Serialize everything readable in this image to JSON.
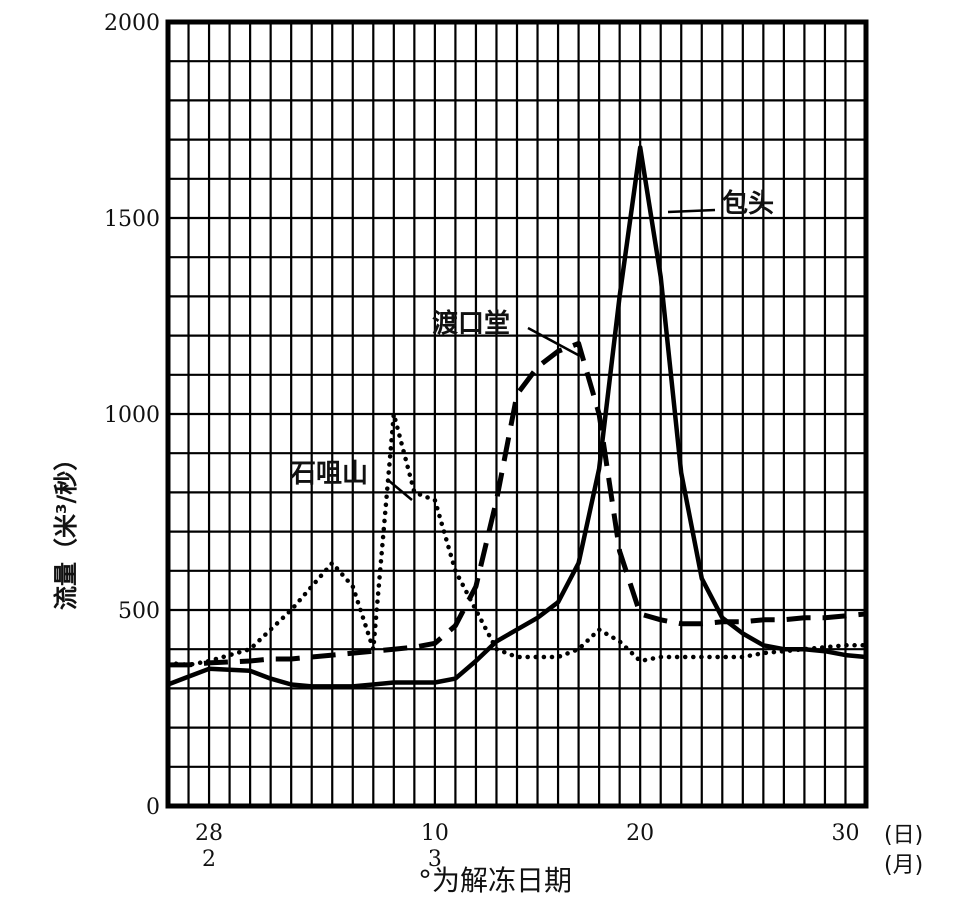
{
  "chart_data": {
    "type": "line",
    "ylabel": "流量（米³/秒）",
    "xlabel": "°为解冻日期",
    "day_unit": "(日)",
    "month_unit": "(月)",
    "ylim": [
      0,
      2000
    ],
    "yticks": [
      0,
      500,
      1000,
      1500,
      2000
    ],
    "xlim": [
      "02-26",
      "03-31"
    ],
    "xticks": [
      {
        "date": "02-28",
        "day": "28",
        "month": "2"
      },
      {
        "date": "03-10",
        "day": "10",
        "month": "3"
      },
      {
        "date": "03-20",
        "day": "20",
        "month": ""
      },
      {
        "date": "03-30",
        "day": "30",
        "month": ""
      }
    ],
    "grid": true,
    "series": [
      {
        "name": "包头",
        "style": "solid",
        "x": [
          "02-26",
          "02-27",
          "02-28",
          "03-01",
          "03-02",
          "03-03",
          "03-04",
          "03-05",
          "03-06",
          "03-07",
          "03-08",
          "03-09",
          "03-10",
          "03-11",
          "03-12",
          "03-13",
          "03-14",
          "03-15",
          "03-16",
          "03-17",
          "03-18",
          "03-19",
          "03-20",
          "03-21",
          "03-22",
          "03-23",
          "03-24",
          "03-25",
          "03-26",
          "03-27",
          "03-28",
          "03-29",
          "03-30",
          "03-31"
        ],
        "y": [
          310,
          330,
          350,
          345,
          325,
          310,
          305,
          305,
          305,
          310,
          315,
          315,
          315,
          325,
          370,
          420,
          450,
          480,
          520,
          620,
          860,
          1300,
          1680,
          1350,
          850,
          580,
          480,
          440,
          410,
          400,
          400,
          395,
          385,
          380
        ]
      },
      {
        "name": "渡口堂",
        "style": "dashed",
        "x": [
          "02-26",
          "02-27",
          "02-28",
          "03-01",
          "03-02",
          "03-03",
          "03-04",
          "03-05",
          "03-06",
          "03-07",
          "03-08",
          "03-09",
          "03-10",
          "03-11",
          "03-12",
          "03-13",
          "03-14",
          "03-15",
          "03-16",
          "03-17",
          "03-18",
          "03-19",
          "03-20",
          "03-21",
          "03-22",
          "03-23",
          "03-24",
          "03-25",
          "03-26",
          "03-27",
          "03-28",
          "03-29",
          "03-30",
          "03-31"
        ],
        "y": [
          360,
          360,
          365,
          370,
          375,
          375,
          380,
          385,
          390,
          395,
          400,
          405,
          415,
          460,
          560,
          780,
          1050,
          1120,
          1160,
          1180,
          1000,
          650,
          490,
          475,
          465,
          465,
          470,
          470,
          475,
          475,
          480,
          480,
          485,
          490
        ]
      },
      {
        "name": "石咀山",
        "style": "dotted",
        "x": [
          "02-26",
          "02-27",
          "02-28",
          "03-01",
          "03-02",
          "03-03",
          "03-04",
          "03-05",
          "03-06",
          "03-07",
          "03-08",
          "03-09",
          "03-10",
          "03-11",
          "03-12",
          "03-13",
          "03-14",
          "03-15",
          "03-16",
          "03-17",
          "03-18",
          "03-19",
          "03-20",
          "03-21",
          "03-22",
          "03-23",
          "03-24",
          "03-25",
          "03-26",
          "03-27",
          "03-28",
          "03-29",
          "03-30",
          "03-31"
        ],
        "y": [
          365,
          360,
          370,
          400,
          450,
          500,
          560,
          620,
          560,
          400,
          1000,
          800,
          780,
          600,
          500,
          400,
          380,
          380,
          380,
          400,
          450,
          420,
          370,
          380,
          380,
          380,
          380,
          380,
          390,
          395,
          400,
          405,
          410,
          410
        ]
      }
    ]
  }
}
